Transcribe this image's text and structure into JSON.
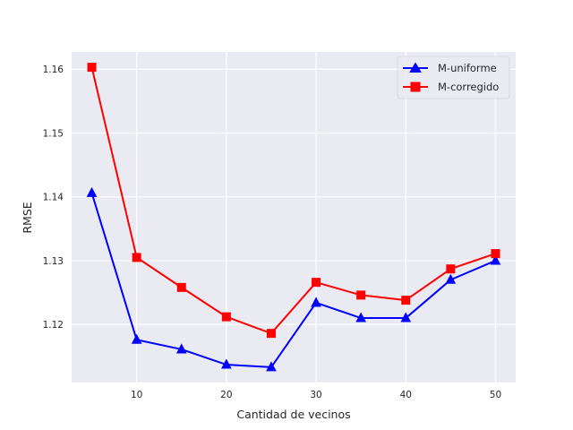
{
  "chart_data": {
    "type": "line",
    "xlabel": "Cantidad de vecinos",
    "ylabel": "RMSE",
    "x": [
      5,
      10,
      15,
      20,
      25,
      30,
      35,
      40,
      45,
      50
    ],
    "xlim": [
      2.75,
      52.25
    ],
    "ylim": [
      1.1109,
      1.1627
    ],
    "xticks": [
      10,
      20,
      30,
      40,
      50
    ],
    "yticks": [
      1.12,
      1.13,
      1.14,
      1.15,
      1.16
    ],
    "ytick_labels": [
      "1.12",
      "1.13",
      "1.14",
      "1.15",
      "1.16"
    ],
    "grid": true,
    "legend_position": "upper right",
    "series": [
      {
        "name": "M-uniforme",
        "color": "#0000ff",
        "marker": "triangle",
        "values": [
          1.1406,
          1.1176,
          1.1161,
          1.1137,
          1.1133,
          1.1234,
          1.121,
          1.121,
          1.127,
          1.13
        ]
      },
      {
        "name": "M-corregido",
        "color": "#ff0000",
        "marker": "square",
        "values": [
          1.1603,
          1.1305,
          1.1258,
          1.1212,
          1.1186,
          1.1266,
          1.1246,
          1.1238,
          1.1287,
          1.1311
        ]
      }
    ]
  }
}
